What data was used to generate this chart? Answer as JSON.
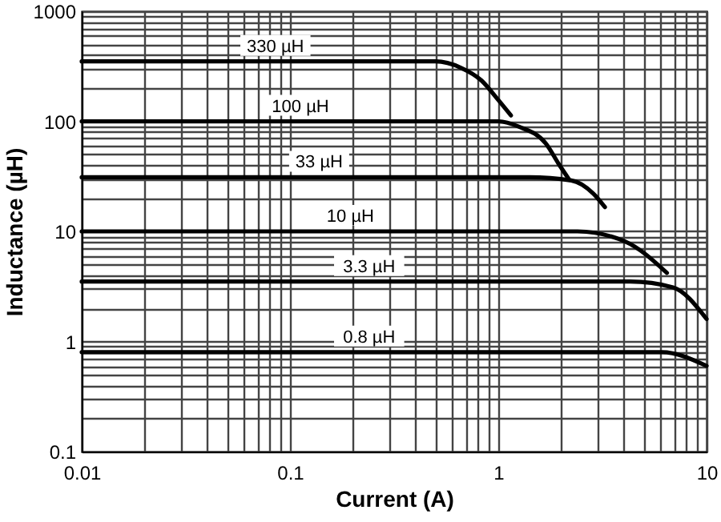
{
  "chart_data": {
    "type": "line",
    "xlabel": "Current (A)",
    "ylabel": "Inductance (µH)",
    "log": "xy",
    "grid": true,
    "marker": "none",
    "line_style": "solid",
    "xlim": [
      0.01,
      10
    ],
    "ylim": [
      0.1,
      1000
    ],
    "xticks": [
      0.01,
      {
        "value": 0.02,
        "label": null
      },
      {
        "value": 0.03,
        "label": null
      },
      {
        "value": 0.04,
        "label": null
      },
      {
        "value": 0.05,
        "label": null
      },
      {
        "value": 0.06,
        "label": null
      },
      {
        "value": 0.07,
        "label": null
      },
      {
        "value": 0.08,
        "label": null
      },
      {
        "value": 0.09,
        "label": null
      },
      0.1,
      {
        "value": 0.2,
        "label": null
      },
      {
        "value": 0.3,
        "label": null
      },
      {
        "value": 0.4,
        "label": null
      },
      {
        "value": 0.5,
        "label": null
      },
      {
        "value": 0.6,
        "label": null
      },
      {
        "value": 0.7,
        "label": null
      },
      {
        "value": 0.8,
        "label": null
      },
      {
        "value": 0.9,
        "label": null
      },
      1,
      {
        "value": 2,
        "label": null
      },
      {
        "value": 3,
        "label": null
      },
      {
        "value": 4,
        "label": null
      },
      {
        "value": 5,
        "label": null
      },
      {
        "value": 6,
        "label": null
      },
      {
        "value": 7,
        "label": null
      },
      {
        "value": 8,
        "label": null
      },
      {
        "value": 9,
        "label": null
      },
      10
    ],
    "yticks": [
      0.1,
      {
        "value": 0.2,
        "label": null
      },
      {
        "value": 0.3,
        "label": null
      },
      {
        "value": 0.4,
        "label": null
      },
      {
        "value": 0.5,
        "label": null
      },
      {
        "value": 0.6,
        "label": null
      },
      {
        "value": 0.7,
        "label": null
      },
      {
        "value": 0.8,
        "label": null
      },
      {
        "value": 0.9,
        "label": null
      },
      1,
      {
        "value": 2,
        "label": null
      },
      {
        "value": 3,
        "label": null
      },
      {
        "value": 4,
        "label": null
      },
      {
        "value": 5,
        "label": null
      },
      {
        "value": 6,
        "label": null
      },
      {
        "value": 7,
        "label": null
      },
      {
        "value": 8,
        "label": null
      },
      {
        "value": 9,
        "label": null
      },
      10,
      {
        "value": 20,
        "label": null
      },
      {
        "value": 30,
        "label": null
      },
      {
        "value": 40,
        "label": null
      },
      {
        "value": 50,
        "label": null
      },
      {
        "value": 60,
        "label": null
      },
      {
        "value": 70,
        "label": null
      },
      {
        "value": 80,
        "label": null
      },
      {
        "value": 90,
        "label": null
      },
      100,
      {
        "value": 200,
        "label": null
      },
      {
        "value": 300,
        "label": null
      },
      {
        "value": 400,
        "label": null
      },
      {
        "value": 500,
        "label": null
      },
      {
        "value": 600,
        "label": null
      },
      {
        "value": 700,
        "label": null
      },
      {
        "value": 800,
        "label": null
      },
      {
        "value": 900,
        "label": null
      },
      1000
    ],
    "series": [
      {
        "name": "330 µH",
        "color": "#000000",
        "x": [
          0.01,
          0.5,
          0.66,
          0.83,
          1.0,
          1.15
        ],
        "values": [
          350,
          350,
          307,
          235,
          156,
          113
        ]
      },
      {
        "name": "100 µH",
        "color": "#000000",
        "x": [
          0.01,
          1.0,
          1.26,
          1.69,
          1.95,
          2.19
        ],
        "values": [
          100,
          100,
          89,
          63,
          41,
          29.5
        ]
      },
      {
        "name": "33 µH",
        "color": "#000000",
        "x": [
          0.01,
          1.41,
          2.24,
          2.86,
          3.25
        ],
        "values": [
          31,
          31,
          29,
          22,
          16.6
        ]
      },
      {
        "name": "10 µH",
        "color": "#000000",
        "x": [
          0.01,
          2.4,
          4.06,
          6.45
        ],
        "values": [
          10,
          10,
          8.1,
          4.2
        ]
      },
      {
        "name": "3.3 µH",
        "color": "#000000",
        "x": [
          0.01,
          4.3,
          6.9,
          10
        ],
        "values": [
          3.5,
          3.5,
          3.1,
          1.6
        ]
      },
      {
        "name": "0.8 µH",
        "color": "#000000",
        "x": [
          0.01,
          6.1,
          10
        ],
        "values": [
          0.8,
          0.8,
          0.6
        ]
      }
    ]
  }
}
